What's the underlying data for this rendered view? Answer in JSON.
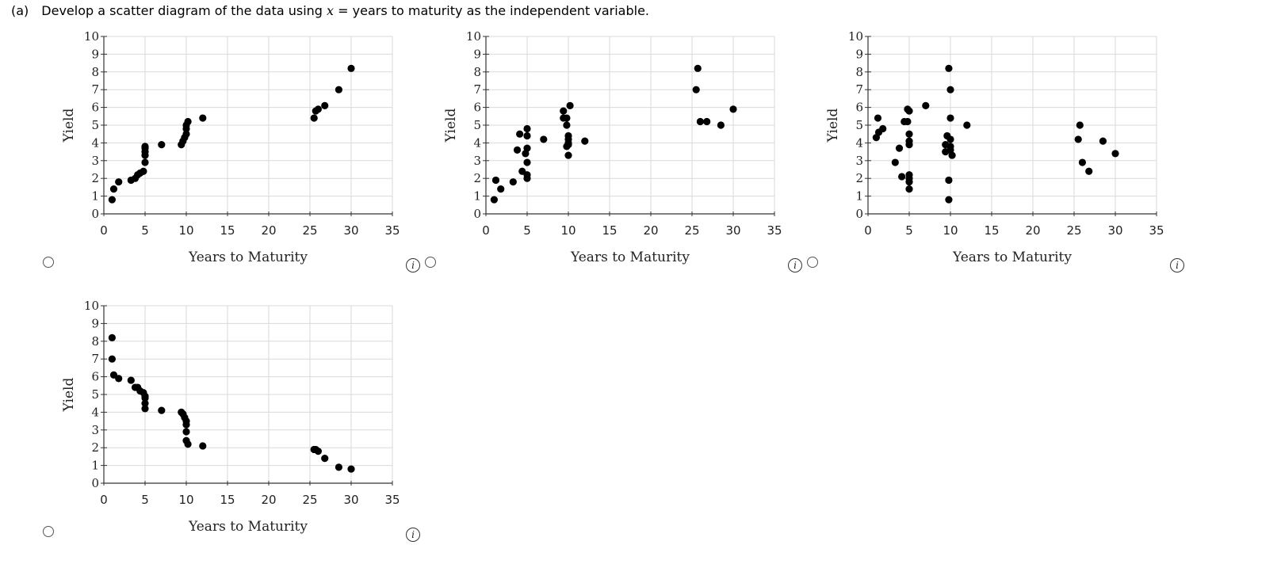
{
  "question": {
    "part": "(a)",
    "text_before": "Develop a scatter diagram of the data using ",
    "var": "x",
    "text_after": " = years to maturity as the independent variable."
  },
  "info_symbol": "i",
  "icons": {
    "radio": "radio-button-icon",
    "info": "info-icon"
  },
  "colors": {
    "marker": "#000000",
    "grid": "#d9d9d9",
    "axis": "#333333"
  },
  "chart_data": [
    {
      "type": "scatter",
      "xlabel": "Years to Maturity",
      "ylabel": "Yield",
      "xlim": [
        0,
        35
      ],
      "ylim": [
        0,
        10
      ],
      "xticks": [
        0,
        5,
        10,
        15,
        20,
        25,
        30,
        35
      ],
      "yticks": [
        0,
        1,
        2,
        3,
        4,
        5,
        6,
        7,
        8,
        9,
        10
      ],
      "grid": true,
      "points": [
        [
          1,
          0.8
        ],
        [
          1.2,
          1.4
        ],
        [
          1.8,
          1.8
        ],
        [
          3.3,
          1.9
        ],
        [
          3.8,
          2.0
        ],
        [
          4.1,
          2.2
        ],
        [
          4.4,
          2.3
        ],
        [
          4.8,
          2.4
        ],
        [
          5,
          2.9
        ],
        [
          5,
          3.3
        ],
        [
          5,
          3.5
        ],
        [
          5,
          3.7
        ],
        [
          5,
          3.8
        ],
        [
          7,
          3.9
        ],
        [
          9.4,
          3.9
        ],
        [
          9.6,
          4.1
        ],
        [
          9.8,
          4.3
        ],
        [
          10,
          4.5
        ],
        [
          10,
          4.8
        ],
        [
          10,
          5.0
        ],
        [
          10.2,
          5.2
        ],
        [
          12,
          5.4
        ],
        [
          25.5,
          5.4
        ],
        [
          25.7,
          5.8
        ],
        [
          26,
          5.9
        ],
        [
          26.8,
          6.1
        ],
        [
          28.5,
          7.0
        ],
        [
          30,
          8.2
        ]
      ]
    },
    {
      "type": "scatter",
      "xlabel": "Years to Maturity",
      "ylabel": "Yield",
      "xlim": [
        0,
        35
      ],
      "ylim": [
        0,
        10
      ],
      "xticks": [
        0,
        5,
        10,
        15,
        20,
        25,
        30,
        35
      ],
      "yticks": [
        0,
        1,
        2,
        3,
        4,
        5,
        6,
        7,
        8,
        9,
        10
      ],
      "grid": true,
      "points": [
        [
          1,
          0.8
        ],
        [
          1.2,
          1.9
        ],
        [
          1.8,
          1.4
        ],
        [
          3.3,
          1.8
        ],
        [
          3.8,
          3.6
        ],
        [
          4.1,
          4.5
        ],
        [
          4.4,
          2.4
        ],
        [
          4.8,
          3.4
        ],
        [
          5,
          2.0
        ],
        [
          5,
          2.2
        ],
        [
          5,
          2.9
        ],
        [
          5,
          3.7
        ],
        [
          5,
          4.4
        ],
        [
          5,
          4.8
        ],
        [
          7,
          4.2
        ],
        [
          9.4,
          5.4
        ],
        [
          9.4,
          5.8
        ],
        [
          9.8,
          3.8
        ],
        [
          9.8,
          5.4
        ],
        [
          9.8,
          5.0
        ],
        [
          10,
          3.3
        ],
        [
          10,
          4.0
        ],
        [
          10,
          4.2
        ],
        [
          10,
          4.4
        ],
        [
          10,
          3.9
        ],
        [
          10.2,
          6.1
        ],
        [
          12,
          4.1
        ],
        [
          25.5,
          7.0
        ],
        [
          25.7,
          8.2
        ],
        [
          26,
          5.2
        ],
        [
          26.8,
          5.2
        ],
        [
          28.5,
          5.0
        ],
        [
          30,
          5.9
        ]
      ]
    },
    {
      "type": "scatter",
      "xlabel": "Years to Maturity",
      "ylabel": "Yield",
      "xlim": [
        0,
        35
      ],
      "ylim": [
        0,
        10
      ],
      "xticks": [
        0,
        5,
        10,
        15,
        20,
        25,
        30,
        35
      ],
      "yticks": [
        0,
        1,
        2,
        3,
        4,
        5,
        6,
        7,
        8,
        9,
        10
      ],
      "grid": true,
      "points": [
        [
          1,
          4.3
        ],
        [
          1.2,
          5.4
        ],
        [
          1.8,
          4.8
        ],
        [
          1.3,
          4.6
        ],
        [
          3.3,
          2.9
        ],
        [
          3.8,
          3.7
        ],
        [
          4.1,
          2.1
        ],
        [
          4.4,
          5.2
        ],
        [
          4.8,
          5.2
        ],
        [
          4.8,
          5.9
        ],
        [
          5,
          1.4
        ],
        [
          5,
          1.8
        ],
        [
          5,
          2.0
        ],
        [
          5,
          2.2
        ],
        [
          5,
          3.9
        ],
        [
          5,
          4.1
        ],
        [
          5,
          4.5
        ],
        [
          5,
          5.8
        ],
        [
          7,
          6.1
        ],
        [
          9.4,
          3.5
        ],
        [
          9.4,
          3.9
        ],
        [
          9.6,
          4.4
        ],
        [
          9.8,
          0.8
        ],
        [
          9.8,
          1.9
        ],
        [
          9.8,
          8.2
        ],
        [
          10,
          3.6
        ],
        [
          10,
          3.8
        ],
        [
          10,
          4.2
        ],
        [
          10,
          5.4
        ],
        [
          10,
          7.0
        ],
        [
          10.2,
          3.3
        ],
        [
          12,
          5.0
        ],
        [
          25.5,
          4.2
        ],
        [
          25.7,
          5.0
        ],
        [
          26,
          2.9
        ],
        [
          26.8,
          2.4
        ],
        [
          28.5,
          4.1
        ],
        [
          30,
          3.4
        ]
      ]
    },
    {
      "type": "scatter",
      "xlabel": "Years to Maturity",
      "ylabel": "Yield",
      "xlim": [
        0,
        35
      ],
      "ylim": [
        0,
        10
      ],
      "xticks": [
        0,
        5,
        10,
        15,
        20,
        25,
        30,
        35
      ],
      "yticks": [
        0,
        1,
        2,
        3,
        4,
        5,
        6,
        7,
        8,
        9,
        10
      ],
      "grid": true,
      "points": [
        [
          1,
          8.2
        ],
        [
          1,
          7.0
        ],
        [
          1.2,
          6.1
        ],
        [
          1.8,
          5.9
        ],
        [
          3.3,
          5.8
        ],
        [
          3.8,
          5.4
        ],
        [
          4.1,
          5.4
        ],
        [
          4.4,
          5.2
        ],
        [
          4.8,
          5.1
        ],
        [
          5,
          4.8
        ],
        [
          5,
          4.9
        ],
        [
          5,
          4.5
        ],
        [
          5,
          4.2
        ],
        [
          7,
          4.1
        ],
        [
          9.4,
          4.0
        ],
        [
          9.6,
          3.9
        ],
        [
          9.8,
          3.7
        ],
        [
          10,
          3.5
        ],
        [
          10,
          3.3
        ],
        [
          10,
          2.9
        ],
        [
          10,
          2.4
        ],
        [
          10.2,
          2.2
        ],
        [
          12,
          2.1
        ],
        [
          25.5,
          1.9
        ],
        [
          25.7,
          1.9
        ],
        [
          26,
          1.8
        ],
        [
          26.8,
          1.4
        ],
        [
          28.5,
          0.9
        ],
        [
          30,
          0.8
        ]
      ]
    }
  ]
}
